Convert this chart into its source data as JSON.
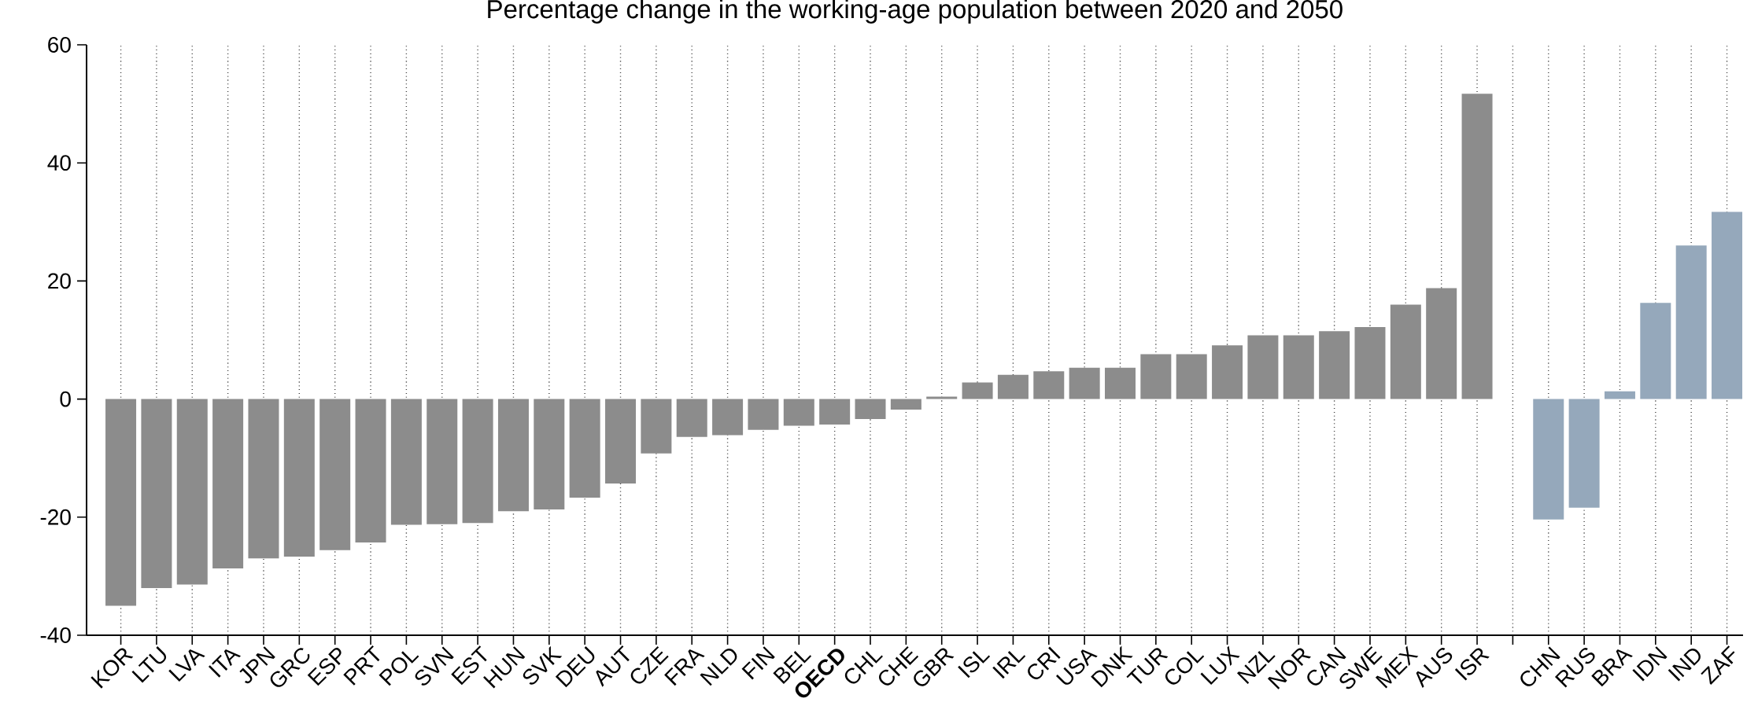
{
  "chart_data": {
    "type": "bar",
    "title": "Percentage change in the working-age population between 2020 and 2050",
    "categories": [
      "KOR",
      "LTU",
      "LVA",
      "ITA",
      "JPN",
      "GRC",
      "ESP",
      "PRT",
      "POL",
      "SVN",
      "EST",
      "HUN",
      "SVK",
      "DEU",
      "AUT",
      "CZE",
      "FRA",
      "NLD",
      "FIN",
      "BEL",
      "**OECD**",
      "CHL",
      "CHE",
      "GBR",
      "ISL",
      "IRL",
      "CRI",
      "USA",
      "DNK",
      "TUR",
      "COL",
      "LUX",
      "NZL",
      "NOR",
      "CAN",
      "SWE",
      "MEX",
      "AUS",
      "ISR",
      null,
      "CHN",
      "RUS",
      "BRA",
      "IDN",
      "IND",
      "ZAF"
    ],
    "values": [
      -35,
      -32,
      -31.4,
      -28.7,
      -27,
      -26.7,
      -25.6,
      -24.3,
      -21.3,
      -21.2,
      -21,
      -19,
      -18.7,
      -16.7,
      -14.3,
      -9.2,
      -6.4,
      -6.1,
      -5.2,
      -4.5,
      -4.3,
      -3.4,
      -1.8,
      0.4,
      2.8,
      4.1,
      4.7,
      5.3,
      5.3,
      7.6,
      7.6,
      9.1,
      10.8,
      10.8,
      11.5,
      12.2,
      16,
      18.8,
      51.7,
      null,
      -20.4,
      -18.4,
      1.3,
      16.3,
      26,
      31.7
    ],
    "colors": [
      "#8c8c8c",
      "#8c8c8c",
      "#8c8c8c",
      "#8c8c8c",
      "#8c8c8c",
      "#8c8c8c",
      "#8c8c8c",
      "#8c8c8c",
      "#8c8c8c",
      "#8c8c8c",
      "#8c8c8c",
      "#8c8c8c",
      "#8c8c8c",
      "#8c8c8c",
      "#8c8c8c",
      "#8c8c8c",
      "#8c8c8c",
      "#8c8c8c",
      "#8c8c8c",
      "#8c8c8c",
      "#8c8c8c",
      "#8c8c8c",
      "#8c8c8c",
      "#8c8c8c",
      "#8c8c8c",
      "#8c8c8c",
      "#8c8c8c",
      "#8c8c8c",
      "#8c8c8c",
      "#8c8c8c",
      "#8c8c8c",
      "#8c8c8c",
      "#8c8c8c",
      "#8c8c8c",
      "#8c8c8c",
      "#8c8c8c",
      "#8c8c8c",
      "#8c8c8c",
      "#8c8c8c",
      "#8c8c8c",
      "#95a8bb",
      "#95a8bb",
      "#95a8bb",
      "#95a8bb",
      "#95a8bb",
      "#95a8bb"
    ],
    "ylim": [
      -40,
      60
    ],
    "yticks": [
      -40,
      -20,
      0,
      20,
      40,
      60
    ],
    "grid": "x"
  }
}
